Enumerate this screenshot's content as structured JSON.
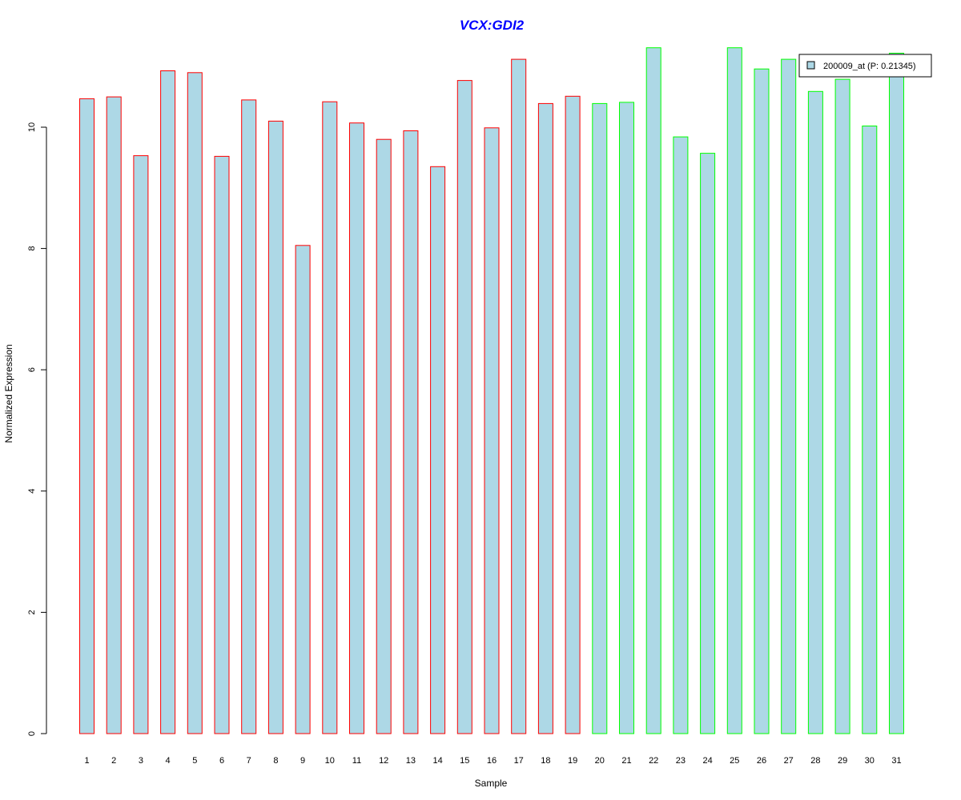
{
  "chart_data": {
    "type": "bar",
    "title": "VCX:GDI2",
    "xlabel": "Sample",
    "ylabel": "Normalized Expression",
    "ylim": [
      0,
      11.3
    ],
    "yticks": [
      "0",
      "2",
      "4",
      "6",
      "8",
      "10"
    ],
    "categories": [
      "1",
      "2",
      "3",
      "4",
      "5",
      "6",
      "7",
      "8",
      "9",
      "10",
      "11",
      "12",
      "13",
      "14",
      "15",
      "16",
      "17",
      "18",
      "19",
      "20",
      "21",
      "22",
      "23",
      "24",
      "25",
      "26",
      "27",
      "28",
      "29",
      "30",
      "31"
    ],
    "series": [
      {
        "name": "200009_at (P: 0.21345)",
        "values": [
          10.47,
          10.5,
          9.53,
          10.93,
          10.9,
          9.52,
          10.45,
          10.1,
          8.05,
          10.42,
          10.07,
          9.8,
          9.94,
          9.35,
          10.77,
          9.99,
          11.12,
          10.39,
          10.51,
          10.39,
          10.41,
          11.31,
          9.84,
          9.57,
          11.31,
          10.96,
          11.12,
          10.59,
          10.79,
          10.02,
          11.22
        ]
      }
    ],
    "group_outline": [
      "red",
      "red",
      "red",
      "red",
      "red",
      "red",
      "red",
      "red",
      "red",
      "red",
      "red",
      "red",
      "red",
      "red",
      "red",
      "red",
      "red",
      "red",
      "red",
      "green",
      "green",
      "green",
      "green",
      "green",
      "green",
      "green",
      "green",
      "green",
      "green",
      "green",
      "green"
    ],
    "legend_position": "top-right",
    "grid": false
  },
  "colors": {
    "bar_fill": "#add8e6",
    "red_outline": "#ff0000",
    "green_outline": "#00ff00",
    "title": "#0000ff",
    "axis": "#000000"
  }
}
